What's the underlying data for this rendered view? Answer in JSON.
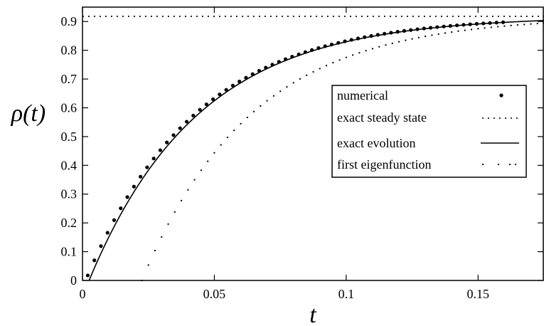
{
  "chart_data": {
    "type": "line",
    "xlabel": "t",
    "ylabel": "ρ(t)",
    "xlim": [
      0,
      0.175
    ],
    "ylim": [
      0,
      0.95
    ],
    "x_ticks": [
      {
        "value": 0,
        "label": "0"
      },
      {
        "value": 0.05,
        "label": "0.05"
      },
      {
        "value": 0.1,
        "label": "0.1"
      },
      {
        "value": 0.15,
        "label": "0.15"
      }
    ],
    "y_ticks": [
      {
        "value": 0,
        "label": "0"
      },
      {
        "value": 0.1,
        "label": "0.1"
      },
      {
        "value": 0.2,
        "label": "0.2"
      },
      {
        "value": 0.3,
        "label": "0.3"
      },
      {
        "value": 0.4,
        "label": "0.4"
      },
      {
        "value": 0.5,
        "label": "0.5"
      },
      {
        "value": 0.6,
        "label": "0.6"
      },
      {
        "value": 0.7,
        "label": "0.7"
      },
      {
        "value": 0.8,
        "label": "0.8"
      },
      {
        "value": 0.9,
        "label": "0.9"
      }
    ],
    "grid": false,
    "legend_position": "right",
    "series": [
      {
        "name": "numerical",
        "style": "dots",
        "formula": "exact",
        "x_start": 0.002,
        "x_end": 0.161,
        "step": 0.0025
      },
      {
        "name": "exact steady state",
        "style": "dotted-hline",
        "value": 0.918
      },
      {
        "name": "exact evolution",
        "style": "solid",
        "x_start": 0.0025,
        "x_end": 0.175
      },
      {
        "name": "first eigenfunction",
        "style": "sparse-dots",
        "x_start": 0.0225,
        "x_end": 0.175,
        "step": 0.0025
      }
    ],
    "model": {
      "steady_state": 0.918,
      "rate": 24.0,
      "exact_amplitude": 0.975,
      "exact_t0": 0.0025,
      "eigen_amplitude": 1.57,
      "eigen_t0": 0.0225
    }
  }
}
